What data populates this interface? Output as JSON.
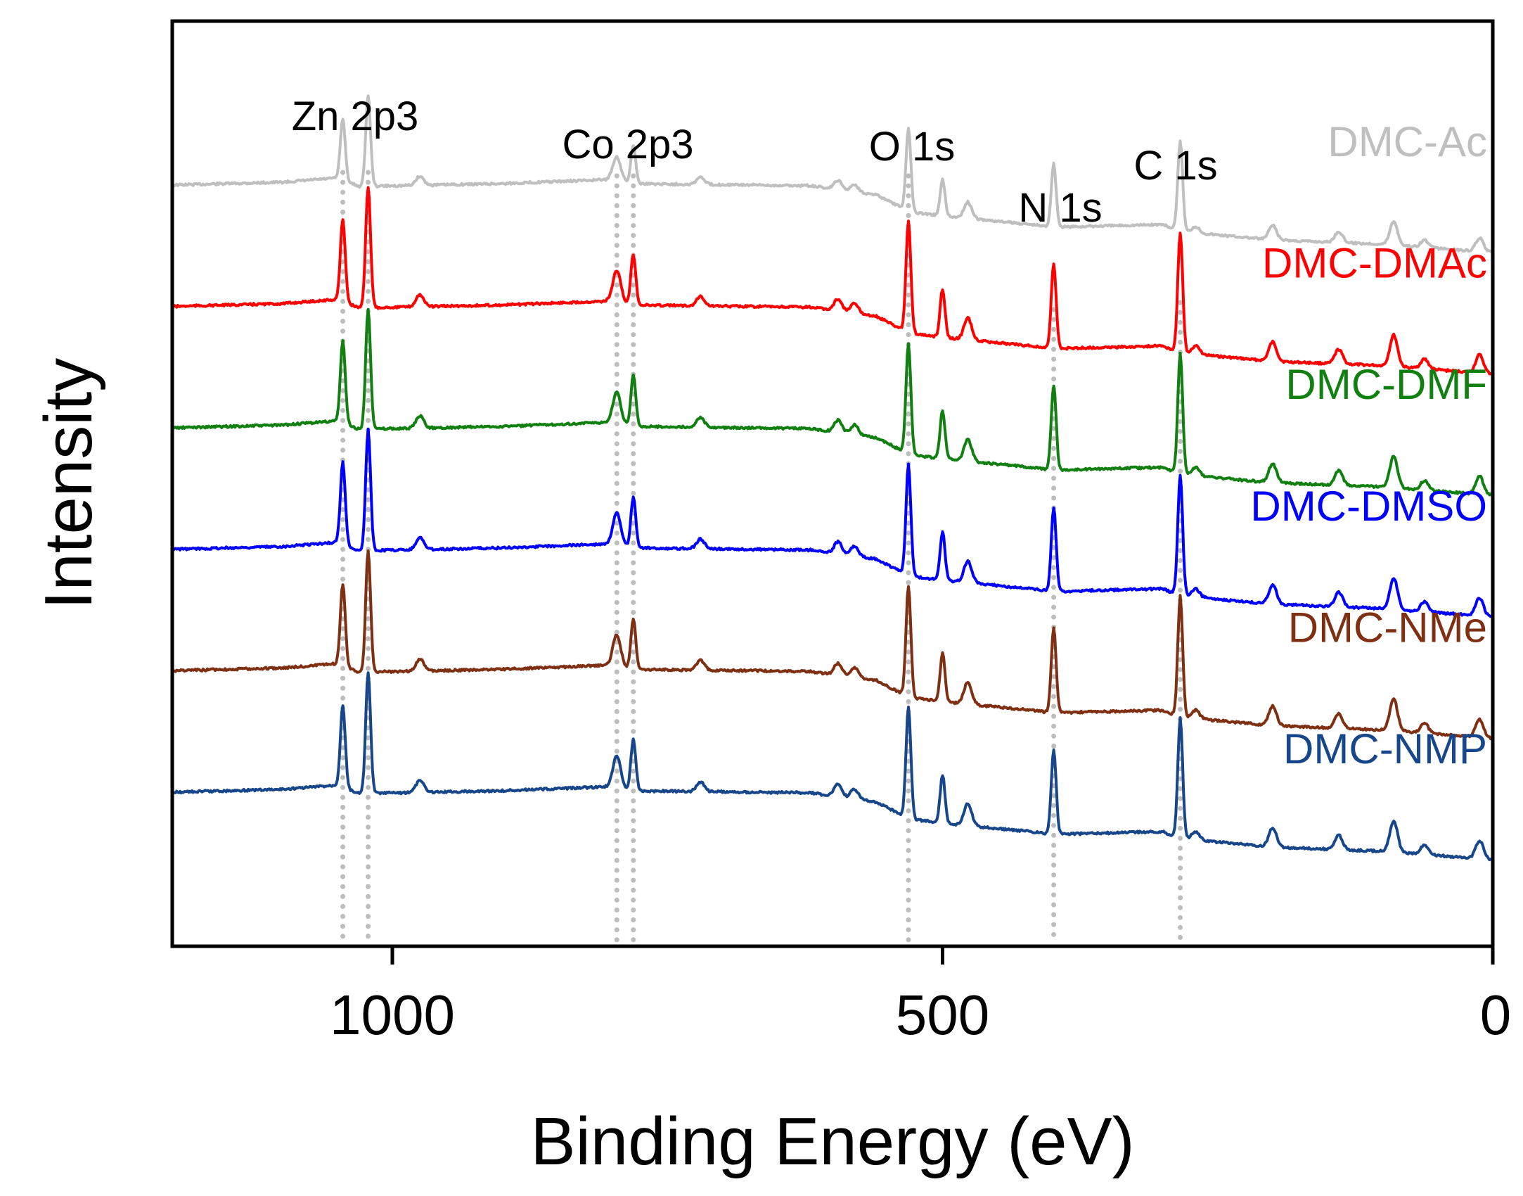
{
  "chart_data": {
    "type": "line",
    "title": "",
    "xlabel": "Binding Energy (eV)",
    "ylabel": "Intensity",
    "xlim": [
      1200,
      0
    ],
    "x_reversed": true,
    "xticks": [
      1000,
      500,
      0
    ],
    "y_ticks_shown": false,
    "grid": false,
    "legend": "inline labels at right end of each curve",
    "peak_lines": [
      {
        "label": "Zn 2p3",
        "energies": [
          1045,
          1022
        ]
      },
      {
        "label": "Co 2p3",
        "energies": [
          796,
          781
        ]
      },
      {
        "label": "O 1s",
        "energies": [
          531
        ]
      },
      {
        "label": "N 1s",
        "energies": [
          399
        ]
      },
      {
        "label": "C 1s",
        "energies": [
          284
        ]
      }
    ],
    "peaks": [
      {
        "energy": 1045,
        "height": 0.68
      },
      {
        "energy": 1022,
        "height": 1.0
      },
      {
        "energy": 975,
        "height": 0.1
      },
      {
        "energy": 796,
        "height": 0.26
      },
      {
        "energy": 781,
        "height": 0.42
      },
      {
        "energy": 720,
        "height": 0.08
      },
      {
        "energy": 595,
        "height": 0.1
      },
      {
        "energy": 580,
        "height": 0.08
      },
      {
        "energy": 531,
        "height": 0.92
      },
      {
        "energy": 500,
        "height": 0.4
      },
      {
        "energy": 477,
        "height": 0.18
      },
      {
        "energy": 399,
        "height": 0.7
      },
      {
        "energy": 284,
        "height": 1.0
      },
      {
        "energy": 270,
        "height": 0.07
      },
      {
        "energy": 200,
        "height": 0.16
      },
      {
        "energy": 140,
        "height": 0.12
      },
      {
        "energy": 90,
        "height": 0.26
      },
      {
        "energy": 62,
        "height": 0.08
      },
      {
        "energy": 12,
        "height": 0.15
      }
    ],
    "background_profile": [
      {
        "energy": 1200,
        "level": 0.96
      },
      {
        "energy": 1100,
        "level": 1.0
      },
      {
        "energy": 1050,
        "level": 1.06
      },
      {
        "energy": 1030,
        "level": 0.94
      },
      {
        "energy": 900,
        "level": 0.98
      },
      {
        "energy": 800,
        "level": 1.04
      },
      {
        "energy": 780,
        "level": 0.98
      },
      {
        "energy": 620,
        "level": 0.95
      },
      {
        "energy": 560,
        "level": 0.82
      },
      {
        "energy": 530,
        "level": 0.58
      },
      {
        "energy": 500,
        "level": 0.52
      },
      {
        "energy": 420,
        "level": 0.4
      },
      {
        "energy": 400,
        "level": 0.36
      },
      {
        "energy": 300,
        "level": 0.4
      },
      {
        "energy": 284,
        "level": 0.3
      },
      {
        "energy": 200,
        "level": 0.18
      },
      {
        "energy": 100,
        "level": 0.12
      },
      {
        "energy": 0,
        "level": 0.0
      }
    ],
    "series": [
      {
        "name": "DMC-Ac",
        "color": "#bfbfbf",
        "offset": 5.0,
        "peak_scale": 0.75
      },
      {
        "name": "DMC-DMAc",
        "color": "#ff0000",
        "offset": 4.0,
        "peak_scale": 1.0
      },
      {
        "name": "DMC-DMF",
        "color": "#118011",
        "offset": 3.0,
        "peak_scale": 1.0
      },
      {
        "name": "DMC-DMSO",
        "color": "#0000ff",
        "offset": 2.0,
        "peak_scale": 1.0
      },
      {
        "name": "DMC-NMe",
        "color": "#7f2f12",
        "offset": 1.0,
        "peak_scale": 1.0
      },
      {
        "name": "DMC-NMP",
        "color": "#17468a",
        "offset": 0.0,
        "peak_scale": 1.0
      }
    ]
  }
}
